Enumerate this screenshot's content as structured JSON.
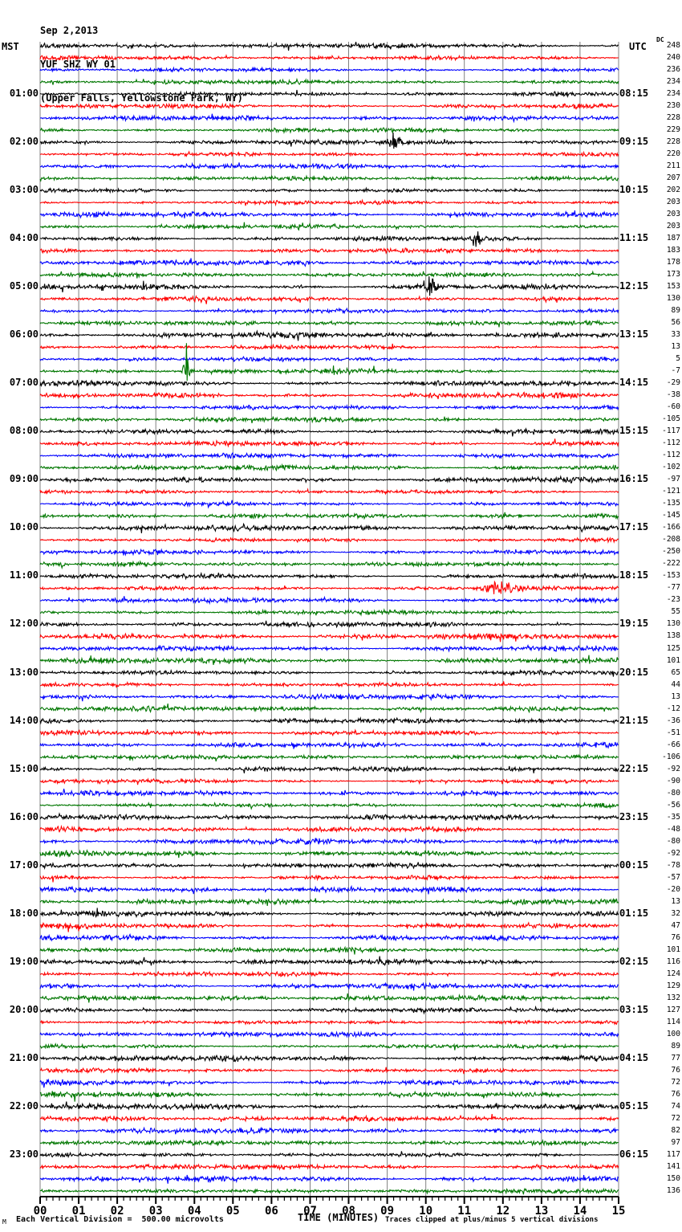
{
  "header": {
    "date": "Sep 2,2013",
    "station": "YUF SHZ WY 01",
    "location": "(Upper Falls, Yellowstone Park, WY)",
    "left_timezone": "MST",
    "right_timezone": "UTC",
    "dc_label": "DC"
  },
  "footer": {
    "corner_mark": "M",
    "division_note": "Each Vertical Division =  500.00 microvolts",
    "xlabel": "TIME (MINUTES)",
    "clip_note": "Traces clipped at plus/minus 5 vertical divisions"
  },
  "chart_data": {
    "type": "line",
    "subtype": "helicorder_seismogram",
    "title": "YUF SHZ WY 01 (Upper Falls, Yellowstone Park, WY) Sep 2,2013",
    "xlabel": "TIME (MINUTES)",
    "xlim": [
      0,
      15
    ],
    "x_tick_labels": [
      "00",
      "01",
      "02",
      "03",
      "04",
      "05",
      "06",
      "07",
      "08",
      "09",
      "10",
      "11",
      "12",
      "13",
      "14",
      "15"
    ],
    "num_rows": 96,
    "rows_per_hour": 4,
    "minutes_per_row": 15,
    "grid": true,
    "grid_color": "#808080",
    "trace_color_cycle": [
      "#000000",
      "#ff0000",
      "#0000ff",
      "#007700"
    ],
    "mst_hour_labels": [
      "01:00",
      "02:00",
      "03:00",
      "04:00",
      "05:00",
      "06:00",
      "07:00",
      "08:00",
      "09:00",
      "10:00",
      "11:00",
      "12:00",
      "13:00",
      "14:00",
      "15:00",
      "16:00",
      "17:00",
      "18:00",
      "19:00",
      "20:00",
      "21:00",
      "22:00",
      "23:00"
    ],
    "utc_hour_labels": [
      "08:15",
      "09:15",
      "10:15",
      "11:15",
      "12:15",
      "13:15",
      "14:15",
      "15:15",
      "16:15",
      "17:15",
      "18:15",
      "19:15",
      "20:15",
      "21:15",
      "22:15",
      "23:15",
      "00:15",
      "01:15",
      "02:15",
      "03:15",
      "04:15",
      "05:15",
      "06:15"
    ],
    "dc_offsets": [
      248,
      240,
      236,
      234,
      234,
      230,
      228,
      229,
      228,
      220,
      211,
      207,
      202,
      203,
      203,
      203,
      187,
      183,
      178,
      173,
      153,
      130,
      89,
      56,
      33,
      13,
      5,
      -7,
      -29,
      -38,
      -60,
      -105,
      -117,
      -112,
      -112,
      -102,
      -97,
      -121,
      -135,
      -145,
      -166,
      -208,
      -250,
      -222,
      -153,
      -77,
      -23,
      55,
      130,
      138,
      125,
      101,
      65,
      44,
      13,
      -12,
      -36,
      -51,
      -66,
      -106,
      -92,
      -90,
      -80,
      -56,
      -35,
      -48,
      -80,
      -92,
      -78,
      -57,
      -20,
      13,
      32,
      47,
      76,
      101,
      116,
      124,
      129,
      132,
      127,
      114,
      100,
      89,
      77,
      76,
      72,
      76,
      74,
      72,
      82,
      97,
      117,
      141,
      150,
      136
    ],
    "events": [
      {
        "row": 8,
        "minute": 9.15,
        "up": 12,
        "down": 8,
        "spread": 0.3,
        "sharp": true
      },
      {
        "row": 16,
        "minute": 11.35,
        "up": 9,
        "down": 5,
        "spread": 0.25,
        "sharp": true
      },
      {
        "row": 20,
        "minute": 10.08,
        "up": 13,
        "down": 11,
        "spread": 0.3,
        "sharp": true
      },
      {
        "row": 27,
        "minute": 3.8,
        "up": 35,
        "down": 12,
        "spread": 0.18,
        "sharp": true
      },
      {
        "row": 45,
        "minute": 11.9,
        "up": 6,
        "down": 6,
        "spread": 0.6,
        "sharp": false
      }
    ],
    "clip_note": "Traces clipped at plus/minus 5 vertical divisions",
    "vertical_division_microvolts": 500.0
  }
}
